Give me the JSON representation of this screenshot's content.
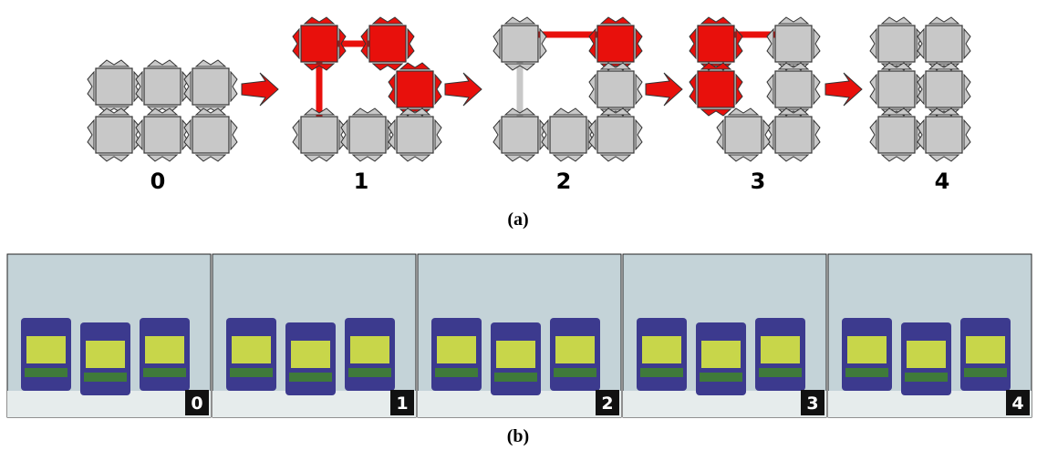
{
  "panel_a": {
    "steps": [
      "0",
      "1",
      "2",
      "3",
      "4"
    ],
    "caption": "(a)"
  },
  "panel_b": {
    "frames": [
      "0",
      "1",
      "2",
      "3",
      "4"
    ],
    "caption": "(b)"
  }
}
